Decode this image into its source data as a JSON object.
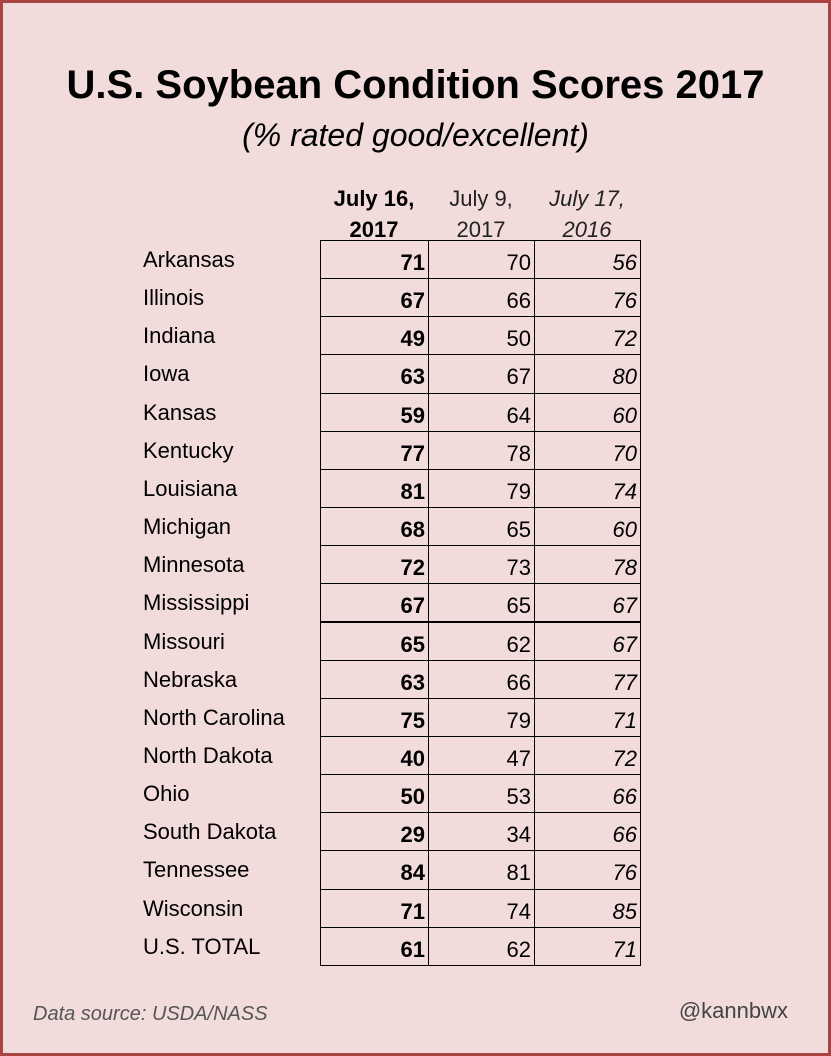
{
  "header": {
    "title": "U.S. Soybean Condition Scores 2017",
    "subtitle": "(% rated good/excellent)"
  },
  "table": {
    "columns": [
      [
        "July 16,",
        "2017"
      ],
      [
        "July 9,",
        "2017"
      ],
      [
        "July 17,",
        "2016"
      ]
    ],
    "rows": [
      [
        "Arkansas",
        71,
        70,
        56
      ],
      [
        "Illinois",
        67,
        66,
        76
      ],
      [
        "Indiana",
        49,
        50,
        72
      ],
      [
        "Iowa",
        63,
        67,
        80
      ],
      [
        "Kansas",
        59,
        64,
        60
      ],
      [
        "Kentucky",
        77,
        78,
        70
      ],
      [
        "Louisiana",
        81,
        79,
        74
      ],
      [
        "Michigan",
        68,
        65,
        60
      ],
      [
        "Minnesota",
        72,
        73,
        78
      ],
      [
        "Mississippi",
        67,
        65,
        67
      ],
      [
        "Missouri",
        65,
        62,
        67
      ],
      [
        "Nebraska",
        63,
        66,
        77
      ],
      [
        "North Carolina",
        75,
        79,
        71
      ],
      [
        "North Dakota",
        40,
        47,
        72
      ],
      [
        "Ohio",
        50,
        53,
        66
      ],
      [
        "South Dakota",
        29,
        34,
        66
      ],
      [
        "Tennessee",
        84,
        81,
        76
      ],
      [
        "Wisconsin",
        71,
        74,
        85
      ],
      [
        "U.S. TOTAL",
        61,
        62,
        71
      ]
    ]
  },
  "footer": {
    "source": "Data source: USDA/NASS",
    "credit": "@kannbwx"
  }
}
